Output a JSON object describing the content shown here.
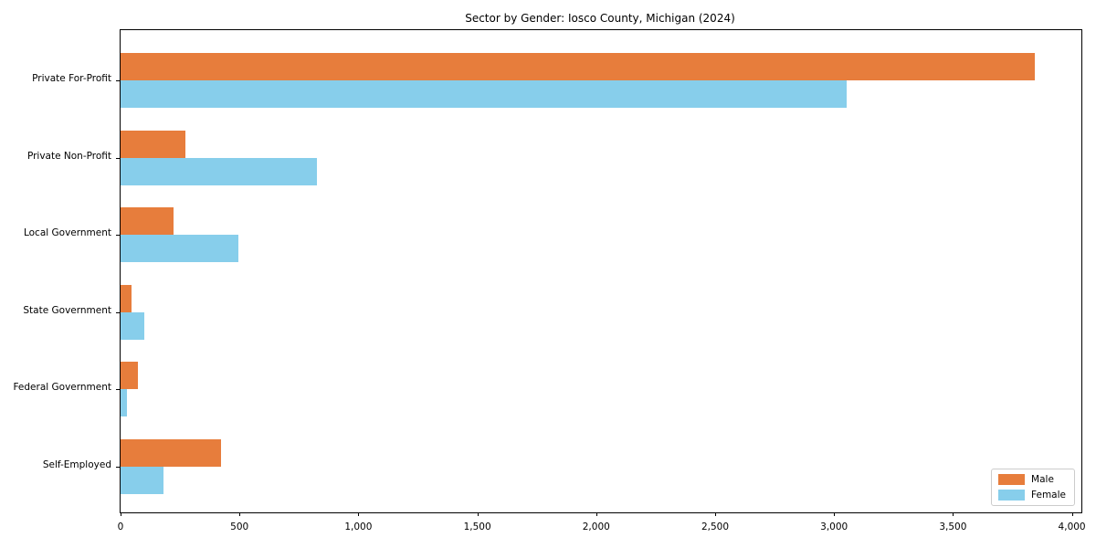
{
  "chart_data": {
    "type": "bar",
    "orientation": "horizontal",
    "title": "Sector by Gender: Iosco County, Michigan (2024)",
    "categories": [
      "Private For-Profit",
      "Private Non-Profit",
      "Local Government",
      "State Government",
      "Federal Government",
      "Self-Employed"
    ],
    "series": [
      {
        "name": "Male",
        "color": "#e77d3c",
        "values": [
          3845,
          273,
          222,
          47,
          73,
          423
        ]
      },
      {
        "name": "Female",
        "color": "#87ceeb",
        "values": [
          3053,
          826,
          496,
          101,
          27,
          181
        ]
      }
    ],
    "xlabel": "",
    "ylabel": "",
    "xlim": [
      0,
      4040
    ],
    "xticks": [
      0,
      500,
      1000,
      1500,
      2000,
      2500,
      3000,
      3500,
      4000
    ],
    "xtick_labels": [
      "0",
      "500",
      "1,000",
      "1,500",
      "2,000",
      "2,500",
      "3,000",
      "3,500",
      "4,000"
    ],
    "grid": false,
    "legend_position": "lower right",
    "colors": {
      "male": "#e77d3c",
      "female": "#87ceeb",
      "axis": "#000000",
      "background": "#ffffff"
    }
  }
}
